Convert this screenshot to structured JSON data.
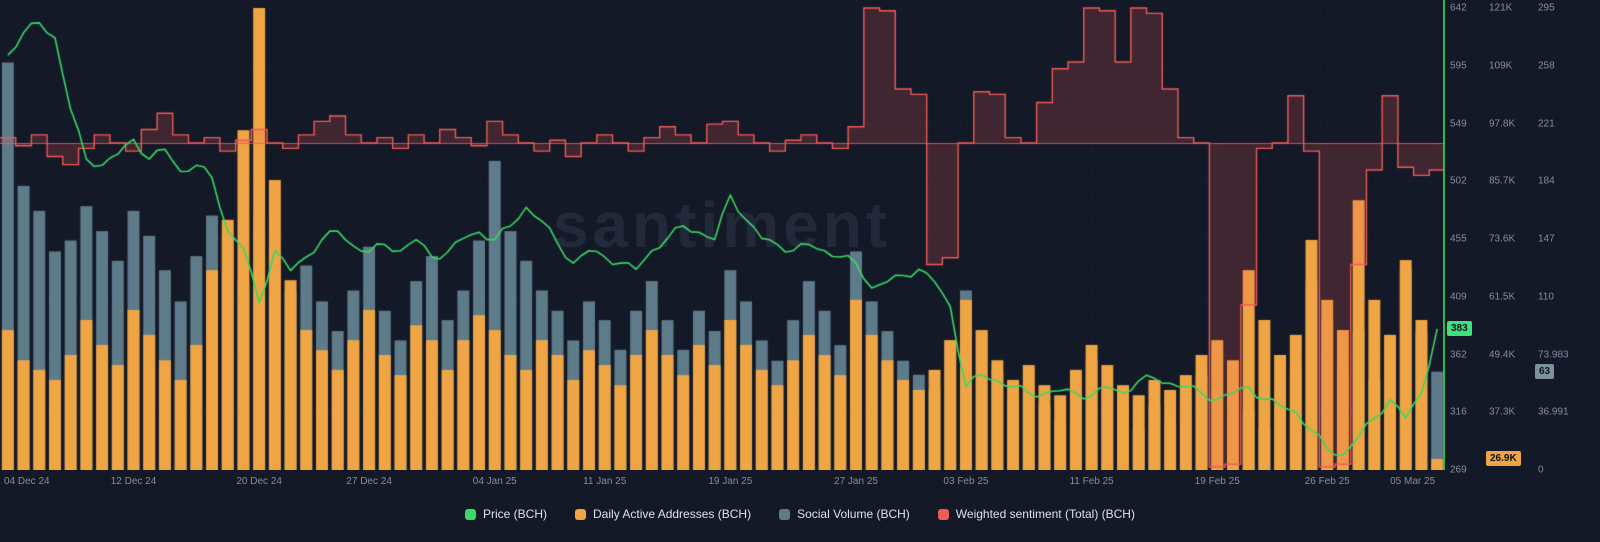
{
  "watermark": {
    "text": "santiment"
  },
  "legend": {
    "items": [
      {
        "key": "price",
        "label": "Price (BCH)",
        "color": "#3ad865"
      },
      {
        "key": "daa",
        "label": "Daily Active Addresses (BCH)",
        "color": "#f0a544"
      },
      {
        "key": "social",
        "label": "Social Volume (BCH)",
        "color": "#5d7b89"
      },
      {
        "key": "sentiment",
        "label": "Weighted sentiment (Total) (BCH)",
        "color": "#ef5b57"
      }
    ]
  },
  "badges": {
    "price": {
      "text": "383",
      "color": "#40e07d"
    },
    "daa": {
      "text": "26.9K",
      "color": "#f0a544"
    },
    "social": {
      "text": "63",
      "color": "#7b919c"
    }
  },
  "chart_data": {
    "type": "mixed",
    "days": 92,
    "x_ticks": [
      {
        "day": 0,
        "label": "04 Dec 24"
      },
      {
        "day": 8,
        "label": "12 Dec 24"
      },
      {
        "day": 16,
        "label": "20 Dec 24"
      },
      {
        "day": 23,
        "label": "27 Dec 24"
      },
      {
        "day": 31,
        "label": "04 Jan 25"
      },
      {
        "day": 38,
        "label": "11 Jan 25"
      },
      {
        "day": 46,
        "label": "19 Jan 25"
      },
      {
        "day": 54,
        "label": "27 Jan 25"
      },
      {
        "day": 61,
        "label": "03 Feb 25"
      },
      {
        "day": 69,
        "label": "11 Feb 25"
      },
      {
        "day": 77,
        "label": "19 Feb 25"
      },
      {
        "day": 84,
        "label": "26 Feb 25"
      },
      {
        "day": 91,
        "label": "05 Mar 25"
      }
    ],
    "axes": {
      "price": {
        "side": "right",
        "ticks": [
          "642",
          "595",
          "549",
          "502",
          "455",
          "409",
          "362",
          "316",
          "269"
        ],
        "range": [
          269,
          642
        ],
        "current": 383
      },
      "daa": {
        "side": "right",
        "ticks": [
          "121K",
          "109K",
          "97.8K",
          "85.7K",
          "73.6K",
          "61.5K",
          "49.4K",
          "37.3K"
        ],
        "range_k": [
          24.6,
          121
        ],
        "current_k": 26.9
      },
      "social": {
        "side": "right",
        "ticks": [
          "295",
          "258",
          "221",
          "184",
          "147",
          "110",
          "73.983",
          "36.991",
          "0"
        ],
        "range": [
          0,
          295.932
        ],
        "current": 63
      },
      "sentiment": {
        "side": "hidden",
        "baseline": 0,
        "range": [
          -248,
          100
        ],
        "zero_y": 143
      }
    },
    "grid": true,
    "legend_position": "bottom-center",
    "series": [
      {
        "name": "Price (BCH)",
        "type": "line",
        "color": "#3ad865",
        "axis": "price",
        "values": [
          604,
          622,
          630,
          618,
          560,
          520,
          515,
          524,
          536,
          520,
          528,
          510,
          515,
          505,
          462,
          448,
          404,
          446,
          430,
          441,
          455,
          462,
          450,
          445,
          451,
          446,
          455,
          441,
          445,
          456,
          461,
          455,
          466,
          481,
          470,
          452,
          436,
          446,
          441,
          436,
          431,
          446,
          456,
          466,
          461,
          455,
          491,
          471,
          456,
          451,
          446,
          451,
          446,
          441,
          436,
          416,
          421,
          426,
          431,
          421,
          401,
          336,
          346,
          341,
          336,
          331,
          331,
          333,
          331,
          329,
          336,
          331,
          341,
          343,
          339,
          336,
          331,
          326,
          331,
          336,
          326,
          321,
          316,
          301,
          286,
          281,
          296,
          311,
          326,
          311,
          331,
          383
        ]
      },
      {
        "name": "Daily Active Addresses (BCH)",
        "type": "bar",
        "color": "#f0a544",
        "axis": "daa",
        "unit": "K",
        "values": [
          53.8,
          47.5,
          45.5,
          43.4,
          48.6,
          55.9,
          50.7,
          46.5,
          58,
          52.8,
          47.5,
          43.4,
          50.7,
          66.3,
          76.8,
          95.5,
          121,
          85.1,
          64.2,
          53.8,
          49.6,
          45.5,
          51.7,
          58,
          48.6,
          44.4,
          54.8,
          51.7,
          45.5,
          51.7,
          56.9,
          53.8,
          48.6,
          45.5,
          51.7,
          48.6,
          43.4,
          49.6,
          46.5,
          42.3,
          48.6,
          53.8,
          48.6,
          44.4,
          50.7,
          46.5,
          55.9,
          50.7,
          45.5,
          42.3,
          47.5,
          52.8,
          48.6,
          44.4,
          60.1,
          52.8,
          47.5,
          43.4,
          41.3,
          45.5,
          51.7,
          60.1,
          53.8,
          47.5,
          43.4,
          46.5,
          42.3,
          40.2,
          45.5,
          50.7,
          46.5,
          42.3,
          40.2,
          43.4,
          41.3,
          44.4,
          48.6,
          51.7,
          47.5,
          66.3,
          55.9,
          48.6,
          52.8,
          72.6,
          60.1,
          53.8,
          80.9,
          60.1,
          52.8,
          68.4,
          55.9,
          26.9
        ]
      },
      {
        "name": "Social Volume (BCH)",
        "type": "bar",
        "color": "#5d7b89",
        "axis": "social",
        "values": [
          261,
          182,
          166,
          140,
          147,
          169,
          153,
          134,
          166,
          150,
          128,
          108,
          137,
          163,
          150,
          121,
          163,
          140,
          115,
          131,
          108,
          89,
          115,
          143,
          102,
          83,
          121,
          137,
          96,
          115,
          147,
          198,
          153,
          134,
          115,
          102,
          83,
          108,
          96,
          77,
          102,
          121,
          96,
          77,
          102,
          89,
          128,
          108,
          83,
          70,
          96,
          121,
          102,
          80,
          140,
          108,
          89,
          70,
          61,
          51,
          83,
          115,
          89,
          64,
          45,
          54,
          41,
          32,
          51,
          70,
          51,
          38,
          26,
          41,
          32,
          45,
          61,
          77,
          51,
          38,
          26,
          38,
          64,
          121,
          96,
          64,
          89,
          57,
          45,
          128,
          89,
          63
        ]
      },
      {
        "name": "Weighted sentiment (Total) (BCH)",
        "type": "step-area",
        "color": "#ef5b57",
        "axis": "sentiment",
        "values": [
          4,
          -2,
          6,
          -10,
          -16,
          -4,
          6,
          0,
          -6,
          10,
          22,
          6,
          0,
          4,
          -6,
          2,
          10,
          0,
          -4,
          6,
          16,
          20,
          6,
          0,
          4,
          -4,
          6,
          0,
          10,
          4,
          -2,
          16,
          6,
          0,
          -6,
          2,
          -10,
          0,
          6,
          0,
          -6,
          4,
          12,
          6,
          0,
          14,
          16,
          6,
          0,
          -6,
          2,
          6,
          0,
          -4,
          12,
          100,
          98,
          40,
          36,
          -90,
          -85,
          0,
          38,
          36,
          4,
          0,
          30,
          55,
          60,
          100,
          98,
          60,
          100,
          96,
          40,
          4,
          0,
          -240,
          -238,
          -120,
          -4,
          0,
          35,
          -6,
          -240,
          -238,
          -90,
          -20,
          35,
          -18,
          -24,
          -20
        ]
      }
    ]
  }
}
